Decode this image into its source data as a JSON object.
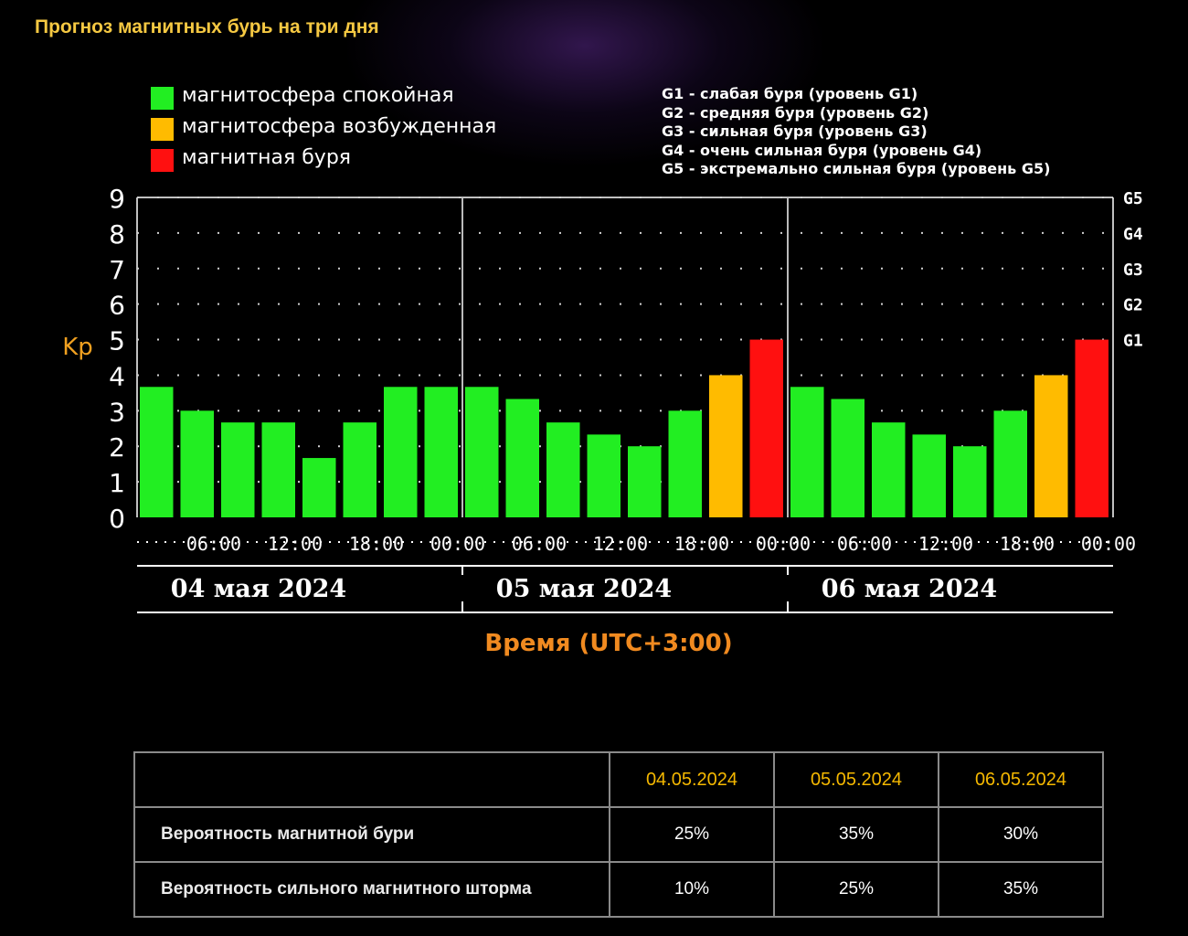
{
  "page": {
    "title": "Прогноз магнитных бурь на три дня"
  },
  "legend": [
    {
      "label": "магнитосфера спокойная",
      "color": "#22ee22"
    },
    {
      "label": "магнитосфера возбужденная",
      "color": "#ffbb00"
    },
    {
      "label": "магнитная буря",
      "color": "#ff1010"
    }
  ],
  "g_levels": [
    "G1 - слабая буря (уровень G1)",
    "G2 - средняя буря (уровень G2)",
    "G3 - сильная буря (уровень G3)",
    "G4 - очень сильная буря (уровень G4)",
    "G5 - экстремально сильная буря (уровень G5)"
  ],
  "chart_data": {
    "type": "bar",
    "ylabel": "Kp",
    "xlabel": "Время (UTC+3:00)",
    "ylim": [
      0,
      9
    ],
    "y_ticks": [
      "0",
      "1",
      "2",
      "3",
      "4",
      "5",
      "6",
      "7",
      "8",
      "9"
    ],
    "g_ticks": [
      {
        "label": "G1",
        "kp": 5
      },
      {
        "label": "G2",
        "kp": 6
      },
      {
        "label": "G3",
        "kp": 7
      },
      {
        "label": "G4",
        "kp": 8
      },
      {
        "label": "G5",
        "kp": 9
      }
    ],
    "x_tick_labels": [
      "06:00",
      "12:00",
      "18:00",
      "00:00",
      "06:00",
      "12:00",
      "18:00",
      "00:00",
      "06:00",
      "12:00",
      "18:00",
      "00:00"
    ],
    "days": [
      "04 мая 2024",
      "05 мая 2024",
      "06 мая 2024"
    ],
    "status_colors": {
      "quiet": "#22ee22",
      "active": "#ffbb00",
      "storm": "#ff1010"
    },
    "bars": [
      {
        "kp": 3.67,
        "status": "quiet"
      },
      {
        "kp": 3.0,
        "status": "quiet"
      },
      {
        "kp": 2.67,
        "status": "quiet"
      },
      {
        "kp": 2.67,
        "status": "quiet"
      },
      {
        "kp": 1.67,
        "status": "quiet"
      },
      {
        "kp": 2.67,
        "status": "quiet"
      },
      {
        "kp": 3.67,
        "status": "quiet"
      },
      {
        "kp": 3.67,
        "status": "quiet"
      },
      {
        "kp": 3.67,
        "status": "quiet"
      },
      {
        "kp": 3.33,
        "status": "quiet"
      },
      {
        "kp": 2.67,
        "status": "quiet"
      },
      {
        "kp": 2.33,
        "status": "quiet"
      },
      {
        "kp": 2.0,
        "status": "quiet"
      },
      {
        "kp": 3.0,
        "status": "quiet"
      },
      {
        "kp": 4.0,
        "status": "active"
      },
      {
        "kp": 5.0,
        "status": "storm"
      },
      {
        "kp": 3.67,
        "status": "quiet"
      },
      {
        "kp": 3.33,
        "status": "quiet"
      },
      {
        "kp": 2.67,
        "status": "quiet"
      },
      {
        "kp": 2.33,
        "status": "quiet"
      },
      {
        "kp": 2.0,
        "status": "quiet"
      },
      {
        "kp": 3.0,
        "status": "quiet"
      },
      {
        "kp": 4.0,
        "status": "active"
      },
      {
        "kp": 5.0,
        "status": "storm"
      }
    ],
    "grid": true,
    "grid_style": "dotted"
  },
  "table": {
    "headers": [
      "",
      "04.05.2024",
      "05.05.2024",
      "06.05.2024"
    ],
    "rows": [
      {
        "label": "Вероятность магнитной бури",
        "values": [
          "25%",
          "35%",
          "30%"
        ]
      },
      {
        "label": "Вероятность сильного магнитного шторма",
        "values": [
          "10%",
          "25%",
          "35%"
        ]
      }
    ]
  }
}
